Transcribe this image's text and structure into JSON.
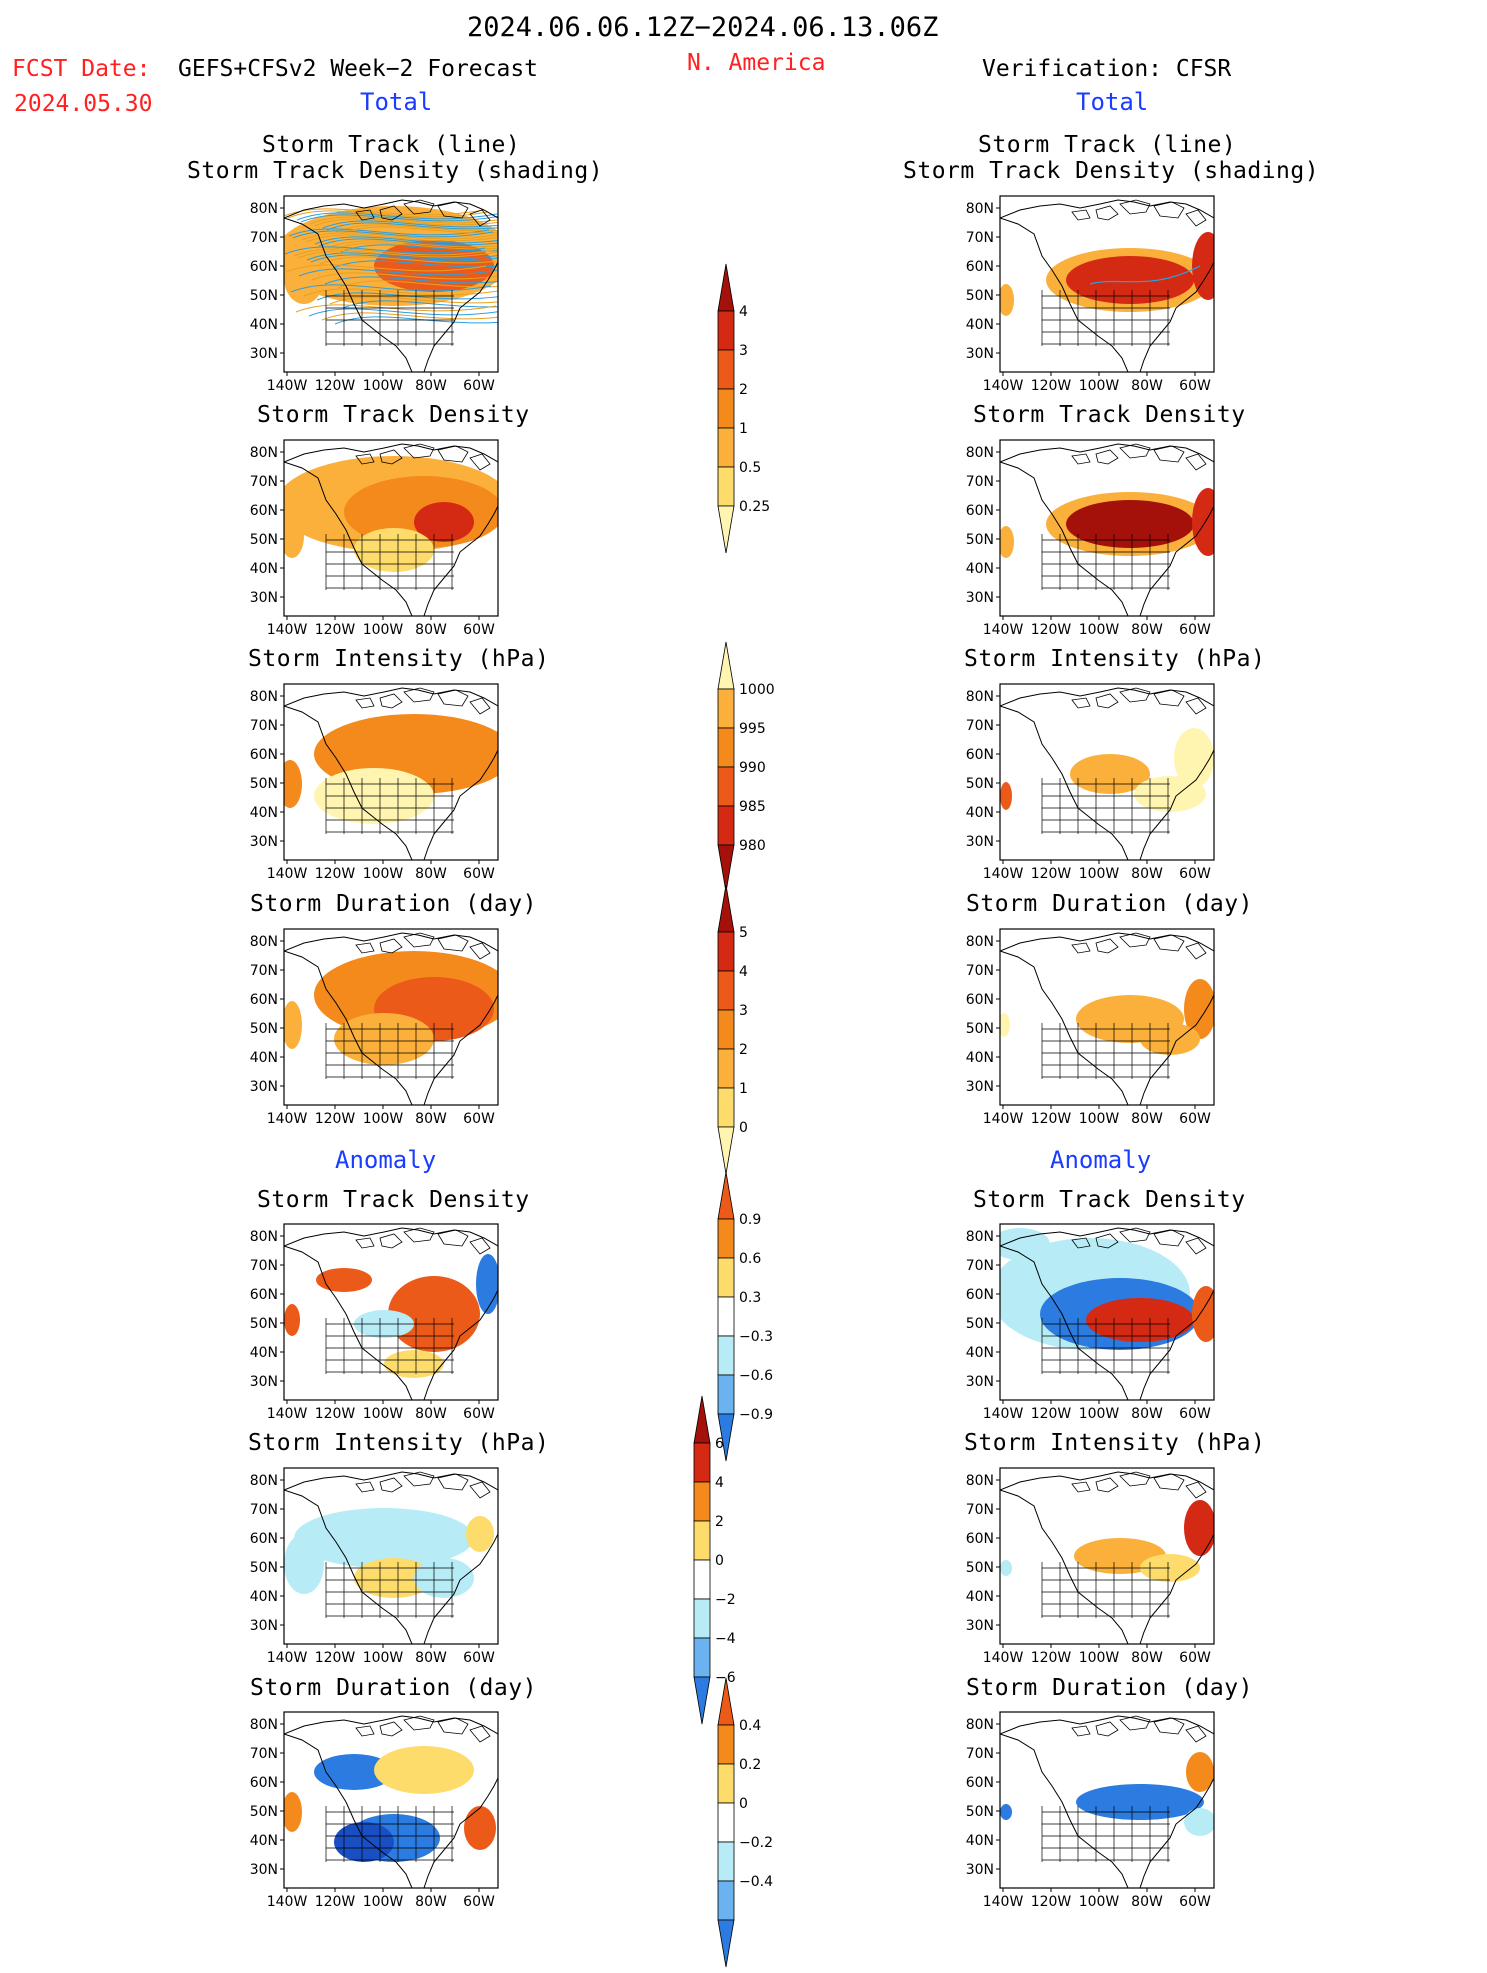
{
  "header": {
    "title": "2024.06.06.12Z−2024.06.13.06Z",
    "fcst_label": "FCST Date:",
    "fcst_date": "2024.05.30",
    "model": "GEFS+CFSv2 Week−2 Forecast",
    "region": "N. America",
    "verification": "Verification: CFSR"
  },
  "sections": {
    "total_left": "Total",
    "total_right": "Total",
    "anomaly_left": "Anomaly",
    "anomaly_right": "Anomaly"
  },
  "panel_titles": {
    "track_line": "Storm Track (line)",
    "track_shading": "Storm Track Density (shading)",
    "density": "Storm Track Density",
    "intensity": "Storm Intensity (hPa)",
    "duration": "Storm Duration (day)"
  },
  "map_axes": {
    "lat_labels": [
      "80N",
      "70N",
      "60N",
      "50N",
      "40N",
      "30N"
    ],
    "lon_labels": [
      "140W",
      "120W",
      "100W",
      "80W",
      "60W"
    ]
  },
  "colorbars": {
    "density_total": [
      "4",
      "3",
      "2",
      "1",
      "0.5",
      "0.25"
    ],
    "intensity_total": [
      "1000",
      "995",
      "990",
      "985",
      "980"
    ],
    "duration_total": [
      "5",
      "4",
      "3",
      "2",
      "1",
      "0"
    ],
    "density_anom": [
      "0.9",
      "0.6",
      "0.3",
      "−0.3",
      "−0.6",
      "−0.9"
    ],
    "intensity_anom": [
      "6",
      "4",
      "2",
      "0",
      "−2",
      "−4",
      "−6"
    ],
    "duration_anom": [
      "0.4",
      "0.2",
      "0",
      "−0.2",
      "−0.4"
    ]
  },
  "colors": {
    "title_red": "#ff2020",
    "section_blue": "#1a3cff",
    "light_yellow": "#fff5b0",
    "yellow": "#fddc6c",
    "orange_light": "#fbb03b",
    "orange": "#f48a1c",
    "red_orange": "#ec5a1a",
    "red": "#d42a14",
    "dark_red": "#a4100a",
    "light_blue": "#b7ecf6",
    "mid_blue": "#6ab3f0",
    "blue": "#2b7be0",
    "dark_blue": "#1a4fc4"
  }
}
